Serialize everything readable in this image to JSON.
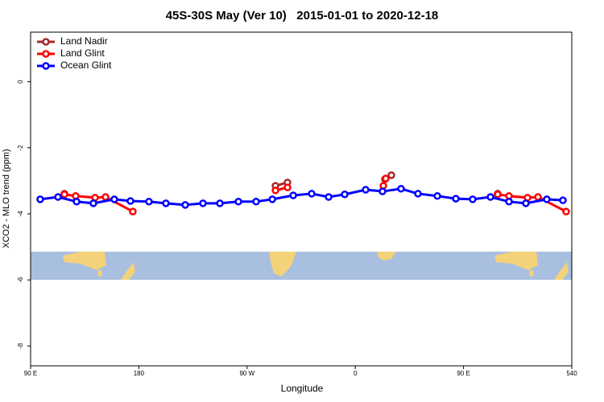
{
  "chart_data": {
    "type": "line",
    "title": "45S-30S May (Ver 10)   2015-01-01 to 2020-12-18",
    "x_label": "Longitude",
    "y_label": "XCO2 - MLO trend (ppm)",
    "xlim": [
      90,
      540
    ],
    "xticks": [
      {
        "value": 90,
        "label": "90 E"
      },
      180,
      {
        "value": 270,
        "label": "90 W"
      },
      {
        "value": 360,
        "label": "0"
      },
      {
        "value": 450,
        "label": "90 E"
      },
      540
    ],
    "ylim": [
      -8.6,
      1.5
    ],
    "yticks": [
      0,
      -2,
      -4,
      -6,
      -8
    ],
    "legend": "top-left",
    "series": [
      {
        "name": "Land Nadir",
        "color": "#a52a2a",
        "x": [
          118.1,
          null,
          293.6,
          303.6,
          null,
          384.6,
          390,
          null,
          478.4
        ],
        "values": [
          -3.39,
          null,
          -3.15,
          -3.05,
          null,
          -2.95,
          -2.83,
          null,
          -3.39
        ]
      },
      {
        "name": "Land Glint",
        "color": "#ff0000",
        "x": [
          118.1,
          127.5,
          143.6,
          152.3,
          175.0,
          null,
          293.6,
          303.6,
          null,
          383.3,
          385.3,
          null,
          478.4,
          487.8,
          503.2,
          511.9,
          535.3
        ],
        "values": [
          -3.41,
          -3.46,
          -3.51,
          -3.49,
          -3.93,
          null,
          -3.29,
          -3.2,
          null,
          -3.15,
          -2.93,
          null,
          -3.41,
          -3.46,
          -3.51,
          -3.49,
          -3.93
        ]
      },
      {
        "name": "Ocean Glint",
        "color": "#0000ff",
        "x": [
          98,
          112.8,
          128.2,
          142.2,
          159.6,
          173,
          188.4,
          202.5,
          218.6,
          233.3,
          247.4,
          262.8,
          277.5,
          291,
          308.4,
          323.7,
          337.8,
          351.2,
          368.6,
          382.6,
          398,
          412.1,
          428.2,
          443.6,
          457.6,
          472.4,
          487.8,
          501.8,
          519.2,
          532.6
        ],
        "values": [
          -3.56,
          -3.49,
          -3.63,
          -3.68,
          -3.56,
          -3.61,
          -3.63,
          -3.68,
          -3.73,
          -3.68,
          -3.68,
          -3.63,
          -3.63,
          -3.56,
          -3.44,
          -3.39,
          -3.49,
          -3.41,
          -3.27,
          -3.32,
          -3.24,
          -3.39,
          -3.46,
          -3.54,
          -3.56,
          -3.49,
          -3.63,
          -3.68,
          -3.56,
          -3.59
        ]
      }
    ]
  }
}
